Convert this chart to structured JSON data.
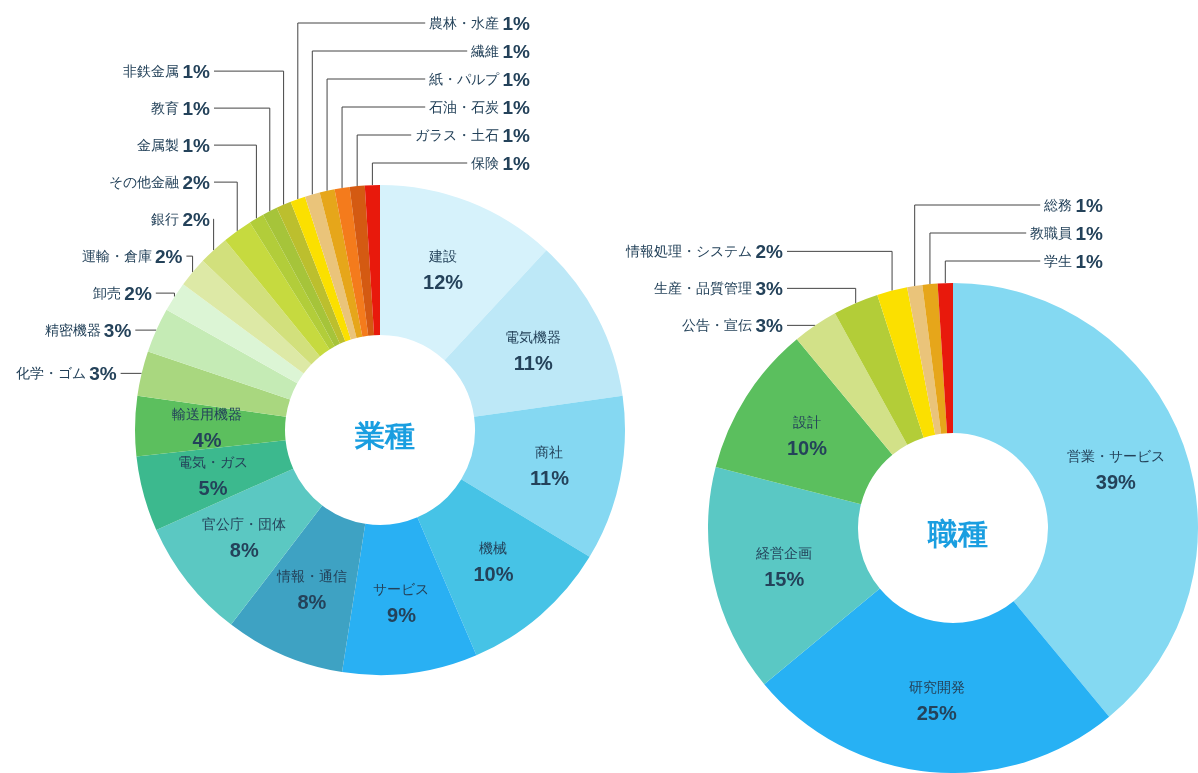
{
  "chart_data": [
    {
      "type": "donut",
      "title": "業種",
      "categories": [
        "建設",
        "電気機器",
        "商社",
        "機械",
        "サービス",
        "情報・通信",
        "官公庁・団体",
        "電気・ガス",
        "輸送用機器",
        "化学・ゴム",
        "精密機器",
        "卸売",
        "運輸・倉庫",
        "銀行",
        "その他金融",
        "金属製",
        "教育",
        "非鉄金属",
        "農林・水産",
        "繊維",
        "紙・パルプ",
        "石油・石炭",
        "ガラス・土石",
        "保険"
      ],
      "values": [
        12,
        11,
        11,
        10,
        9,
        8,
        8,
        5,
        4,
        3,
        3,
        2,
        2,
        2,
        2,
        1,
        1,
        1,
        1,
        1,
        1,
        1,
        1,
        1
      ],
      "value_labels": [
        "12%",
        "11%",
        "11%",
        "10%",
        "9%",
        "8%",
        "8%",
        "5%",
        "4%",
        "3%",
        "3%",
        "2%",
        "2%",
        "2%",
        "2%",
        "1%",
        "1%",
        "1%",
        "1%",
        "1%",
        "1%",
        "1%",
        "1%",
        "1%"
      ],
      "colors": [
        "#d6f2fb",
        "#bde8f7",
        "#85d8f2",
        "#46c3e6",
        "#29b0f3",
        "#3ea2c3",
        "#5bc8c2",
        "#3cb98e",
        "#5cbf5e",
        "#a9d77f",
        "#c5ebb5",
        "#dcf5d5",
        "#dde9a6",
        "#d2e07c",
        "#c6da3f",
        "#b2cd3a",
        "#a6c43a",
        "#bcbf2e",
        "#fbe000",
        "#eac47a",
        "#e6a61a",
        "#f47b1c",
        "#d45a12",
        "#e8190c"
      ]
    },
    {
      "type": "donut",
      "title": "職種",
      "categories": [
        "営業・サービス",
        "研究開発",
        "経営企画",
        "設計",
        "公告・宣伝",
        "生産・品質管理",
        "情報処理・システム",
        "総務",
        "教職員",
        "学生"
      ],
      "values": [
        39,
        25,
        15,
        10,
        3,
        3,
        2,
        1,
        1,
        1
      ],
      "value_labels": [
        "39%",
        "25%",
        "15%",
        "10%",
        "3%",
        "3%",
        "2%",
        "1%",
        "1%",
        "1%"
      ],
      "colors": [
        "#84d9f2",
        "#27b1f4",
        "#5ac8c4",
        "#5bbf5e",
        "#d2e188",
        "#b3cd38",
        "#fbe000",
        "#eac47a",
        "#e6a61a",
        "#e8190c"
      ]
    }
  ]
}
